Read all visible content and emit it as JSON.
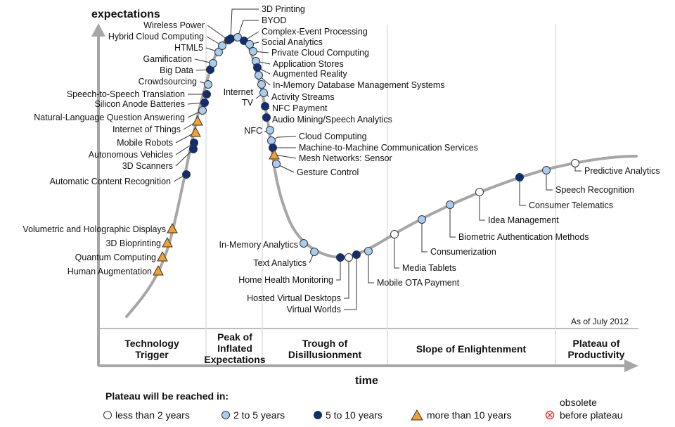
{
  "axes": {
    "y_label": "expectations",
    "x_label": "time"
  },
  "as_of": "As of July 2012",
  "phases": [
    [
      "Technology",
      "Trigger"
    ],
    [
      "Peak of",
      "Inflated",
      "Expectations"
    ],
    [
      "Trough of",
      "Disillusionment"
    ],
    [
      "Slope of Enlightenment"
    ],
    [
      "Plateau of",
      "Productivity"
    ]
  ],
  "categories": {
    "lt2": {
      "label": "less than 2 years",
      "fill": "#ffffff"
    },
    "2to5": {
      "label": "2 to 5 years",
      "fill": "#a9cdf0"
    },
    "5to10": {
      "label": "5 to 10 years",
      "fill": "#0e2e78"
    },
    "gt10": {
      "label": "more than 10 years",
      "fill": "#f2a22d"
    },
    "obsolete": {
      "label_line1": "obsolete",
      "label_line2": "before plateau",
      "color": "#e03b3b"
    }
  },
  "legend": {
    "title": "Plateau will be reached in:"
  },
  "curve_color": "#a6a6a6",
  "technologies": [
    {
      "name": "Human Augmentation",
      "cat": "gt10"
    },
    {
      "name": "Quantum Computing",
      "cat": "gt10"
    },
    {
      "name": "3D Bioprinting",
      "cat": "gt10"
    },
    {
      "name": "Volumetric and Holographic Displays",
      "cat": "gt10"
    },
    {
      "name": "Automatic Content Recognition",
      "cat": "5to10"
    },
    {
      "name": "3D Scanners",
      "cat": "5to10"
    },
    {
      "name": "Autonomous Vehicles",
      "cat": "5to10"
    },
    {
      "name": "Mobile Robots",
      "cat": "gt10"
    },
    {
      "name": "Internet of Things",
      "cat": "gt10"
    },
    {
      "name": "Natural-Language Question Answering",
      "cat": "2to5"
    },
    {
      "name": "Silicon Anode Batteries",
      "cat": "5to10"
    },
    {
      "name": "Speech-to-Speech Translation",
      "cat": "5to10"
    },
    {
      "name": "Crowdsourcing",
      "cat": "2to5"
    },
    {
      "name": "Big Data",
      "cat": "5to10"
    },
    {
      "name": "Gamification",
      "cat": "2to5"
    },
    {
      "name": "HTML5",
      "cat": "2to5"
    },
    {
      "name": "Hybrid Cloud Computing",
      "cat": "2to5"
    },
    {
      "name": "Wireless Power",
      "cat": "5to10"
    },
    {
      "name": "3D Printing",
      "cat": "5to10"
    },
    {
      "name": "BYOD",
      "cat": "2to5"
    },
    {
      "name": "Complex-Event Processing",
      "cat": "5to10"
    },
    {
      "name": "Social Analytics",
      "cat": "2to5"
    },
    {
      "name": "Private Cloud Computing",
      "cat": "2to5"
    },
    {
      "name": "Application Stores",
      "cat": "2to5"
    },
    {
      "name": "Augmented Reality",
      "cat": "5to10"
    },
    {
      "name": "In-Memory Database Management Systems",
      "cat": "2to5"
    },
    {
      "name": "Activity Streams",
      "cat": "2to5"
    },
    {
      "name": "Internet TV",
      "cat": "2to5"
    },
    {
      "name": "NFC Payment",
      "cat": "5to10"
    },
    {
      "name": "Audio Mining/Speech Analytics",
      "cat": "5to10"
    },
    {
      "name": "NFC",
      "cat": "2to5"
    },
    {
      "name": "Cloud Computing",
      "cat": "2to5"
    },
    {
      "name": "Machine-to-Machine Communication Services",
      "cat": "5to10"
    },
    {
      "name": "Mesh Networks: Sensor",
      "cat": "gt10"
    },
    {
      "name": "Gesture Control",
      "cat": "2to5"
    },
    {
      "name": "In-Memory Analytics",
      "cat": "2to5"
    },
    {
      "name": "Text Analytics",
      "cat": "2to5"
    },
    {
      "name": "Home Health Monitoring",
      "cat": "5to10"
    },
    {
      "name": "Hosted Virtual Desktops",
      "cat": "lt2"
    },
    {
      "name": "Virtual Worlds",
      "cat": "5to10"
    },
    {
      "name": "Mobile OTA Payment",
      "cat": "2to5"
    },
    {
      "name": "Media Tablets",
      "cat": "lt2"
    },
    {
      "name": "Consumerization",
      "cat": "2to5"
    },
    {
      "name": "Biometric Authentication Methods",
      "cat": "2to5"
    },
    {
      "name": "Idea Management",
      "cat": "lt2"
    },
    {
      "name": "Consumer Telematics",
      "cat": "5to10"
    },
    {
      "name": "Speech Recognition",
      "cat": "2to5"
    },
    {
      "name": "Predictive Analytics",
      "cat": "lt2"
    }
  ]
}
